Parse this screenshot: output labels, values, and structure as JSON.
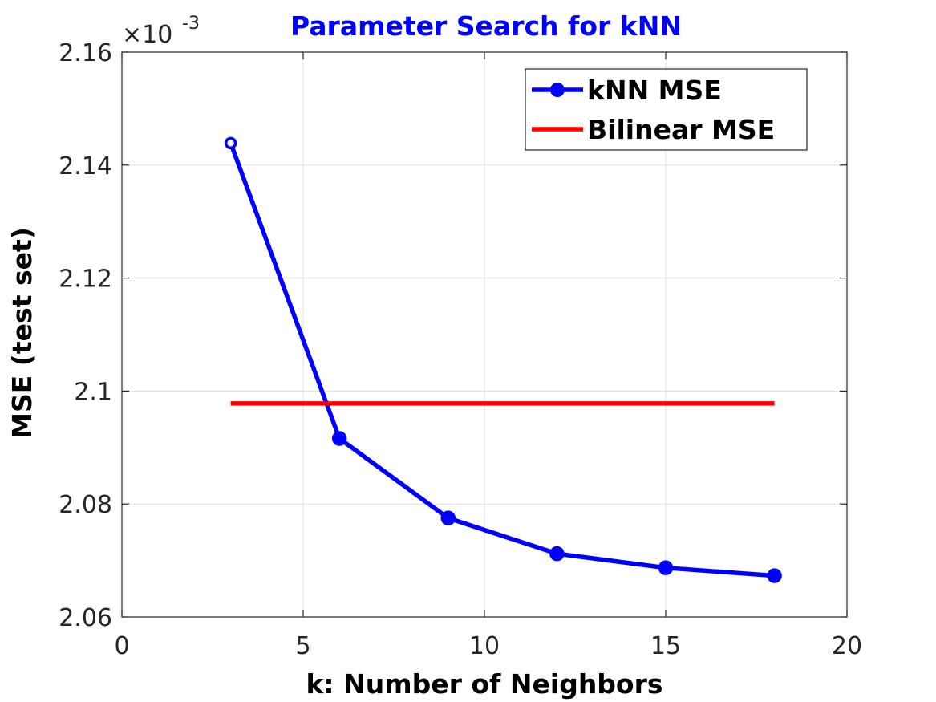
{
  "chart_data": {
    "type": "line",
    "title": "Parameter Search for kNN",
    "xlabel": "k: Number of Neighbors",
    "ylabel": "MSE (test set)",
    "y_multiplier_base": "×10",
    "y_multiplier_exp": "-3",
    "xlim": [
      0,
      20
    ],
    "ylim": [
      2.06,
      2.16
    ],
    "x_ticks": [
      0,
      5,
      10,
      15,
      20
    ],
    "y_ticks": [
      2.06,
      2.08,
      2.1,
      2.12,
      2.14,
      2.16
    ],
    "x_tick_labels": [
      "0",
      "5",
      "10",
      "15",
      "20"
    ],
    "y_tick_labels": [
      "2.06",
      "2.08",
      "2.1",
      "2.12",
      "2.14",
      "2.16"
    ],
    "grid": true,
    "legend_position": "top-right",
    "series": [
      {
        "name": "kNN MSE",
        "color": "#0000ff",
        "marker": "circle",
        "x": [
          3,
          6,
          9,
          12,
          15,
          18
        ],
        "y": [
          2.1439,
          2.0916,
          2.0775,
          2.0712,
          2.0687,
          2.0673
        ]
      },
      {
        "name": "Bilinear MSE",
        "color": "#ff0000",
        "marker": "none",
        "x": [
          3,
          18
        ],
        "y": [
          2.0978,
          2.0978
        ]
      }
    ]
  }
}
